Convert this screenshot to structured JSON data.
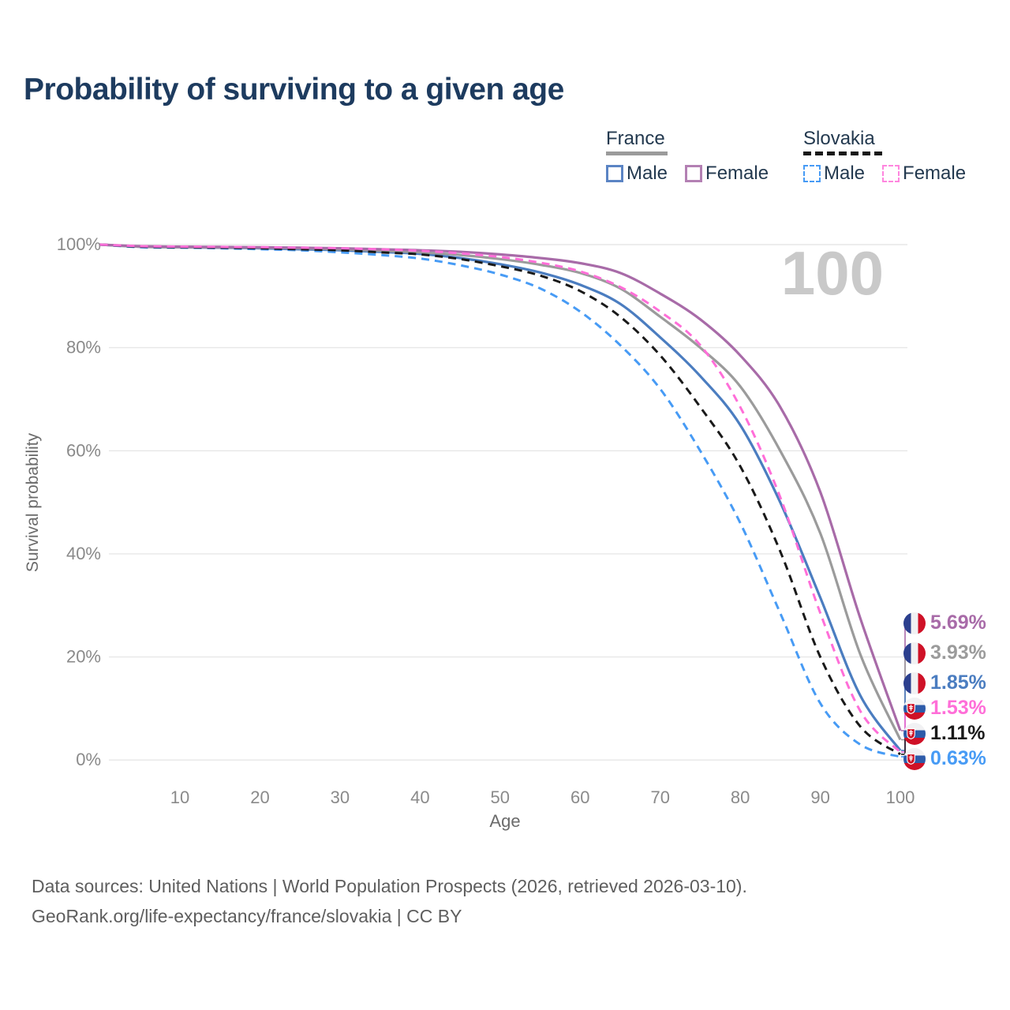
{
  "title": "Probability of surviving to a given age",
  "watermark": "100",
  "legend": {
    "groups": [
      {
        "label": "France",
        "line_style": "solid",
        "underline_color": "#9b9b9b",
        "items": [
          {
            "label": "Male",
            "color": "#5b84c4"
          },
          {
            "label": "Female",
            "color": "#b380b3"
          }
        ]
      },
      {
        "label": "Slovakia",
        "line_style": "dashed",
        "underline_color": "#191919",
        "items": [
          {
            "label": "Male",
            "color": "#479bf5"
          },
          {
            "label": "Female",
            "color": "#ff86df"
          }
        ]
      }
    ]
  },
  "axes": {
    "x": {
      "title": "Age",
      "min": 0,
      "max": 100,
      "ticks": [
        {
          "v": 10,
          "label": "10"
        },
        {
          "v": 20,
          "label": "20"
        },
        {
          "v": 30,
          "label": "30"
        },
        {
          "v": 40,
          "label": "40"
        },
        {
          "v": 50,
          "label": "50"
        },
        {
          "v": 60,
          "label": "60"
        },
        {
          "v": 70,
          "label": "70"
        },
        {
          "v": 80,
          "label": "80"
        },
        {
          "v": 90,
          "label": "90"
        },
        {
          "v": 100,
          "label": "100"
        }
      ]
    },
    "y": {
      "title": "Survival probability",
      "min": 0,
      "max": 100,
      "ticks": [
        {
          "v": 0,
          "label": "0%"
        },
        {
          "v": 20,
          "label": "20%"
        },
        {
          "v": 40,
          "label": "40%"
        },
        {
          "v": 60,
          "label": "60%"
        },
        {
          "v": 80,
          "label": "80%"
        },
        {
          "v": 100,
          "label": "100%"
        }
      ]
    }
  },
  "end_labels": [
    {
      "label": "5.69%",
      "color": "#a86ba8",
      "flag": "france-flag-icon",
      "series": "France Female"
    },
    {
      "label": "3.93%",
      "color": "#9b9b9b",
      "flag": "france-flag-icon",
      "series": "France Both sexes"
    },
    {
      "label": "1.85%",
      "color": "#4b7dc0",
      "flag": "france-flag-icon",
      "series": "France Male"
    },
    {
      "label": "1.53%",
      "color": "#ff6ed8",
      "flag": "slovakia-flag-icon",
      "series": "Slovakia Female"
    },
    {
      "label": "1.11%",
      "color": "#1a1a1a",
      "flag": "slovakia-flag-icon",
      "series": "Slovakia Both sexes"
    },
    {
      "label": "0.63%",
      "color": "#479bf5",
      "flag": "slovakia-flag-icon",
      "series": "Slovakia Male"
    }
  ],
  "footer": {
    "line1": "Data sources: United Nations | World Population Prospects (2026, retrieved 2026-03-10).",
    "line2": "GeoRank.org/life-expectancy/france/slovakia | CC BY"
  },
  "chart_data": {
    "type": "line",
    "title": "Probability of surviving to a given age",
    "xlabel": "Age",
    "ylabel": "Survival probability",
    "xlim": [
      0,
      100
    ],
    "ylim": [
      0,
      100
    ],
    "grid": "horizontal",
    "legend_position": "top-right",
    "x": [
      0,
      5,
      10,
      15,
      20,
      25,
      30,
      35,
      40,
      45,
      50,
      55,
      60,
      65,
      70,
      75,
      80,
      85,
      90,
      95,
      100
    ],
    "series": [
      {
        "name": "France Male",
        "country": "France",
        "sex": "Male",
        "color": "#4b7dc0",
        "dash": "solid",
        "end_label": "1.85%",
        "values": [
          100,
          99.6,
          99.5,
          99.4,
          99.3,
          99.1,
          98.9,
          98.6,
          98.2,
          97.4,
          96.2,
          94.6,
          92.2,
          88.5,
          82.0,
          74.5,
          65.0,
          50.0,
          31.5,
          12.5,
          1.85
        ]
      },
      {
        "name": "France Both sexes",
        "country": "France",
        "sex": "Both",
        "color": "#9b9b9b",
        "dash": "solid",
        "end_label": "3.93%",
        "values": [
          100,
          99.6,
          99.5,
          99.45,
          99.4,
          99.3,
          99.1,
          98.8,
          98.5,
          98.0,
          97.2,
          96.1,
          94.5,
          91.5,
          86.0,
          80.0,
          72.5,
          60.0,
          44.0,
          20.5,
          3.93
        ]
      },
      {
        "name": "France Female",
        "country": "France",
        "sex": "Female",
        "color": "#a86ba8",
        "dash": "solid",
        "end_label": "5.69%",
        "values": [
          100,
          99.7,
          99.6,
          99.55,
          99.5,
          99.4,
          99.3,
          99.1,
          98.9,
          98.6,
          98.1,
          97.4,
          96.4,
          94.5,
          90.5,
          85.5,
          78.5,
          68.5,
          52.0,
          27.5,
          5.69
        ]
      },
      {
        "name": "Slovakia Male",
        "country": "Slovakia",
        "sex": "Male",
        "color": "#479bf5",
        "dash": "dashed",
        "end_label": "0.63%",
        "values": [
          100,
          99.5,
          99.4,
          99.3,
          99.1,
          98.9,
          98.5,
          98.0,
          97.3,
          96.0,
          94.2,
          91.5,
          87.0,
          80.5,
          72.0,
          60.0,
          46.0,
          28.5,
          11.0,
          3.0,
          0.63
        ]
      },
      {
        "name": "Slovakia Both sexes",
        "country": "Slovakia",
        "sex": "Both",
        "color": "#191919",
        "dash": "dashed",
        "end_label": "1.11%",
        "values": [
          100,
          99.6,
          99.5,
          99.4,
          99.3,
          99.1,
          98.9,
          98.5,
          98.1,
          97.2,
          95.8,
          94.0,
          91.0,
          86.0,
          78.5,
          68.5,
          57.0,
          40.5,
          20.0,
          6.5,
          1.11
        ]
      },
      {
        "name": "Slovakia Female",
        "country": "Slovakia",
        "sex": "Female",
        "color": "#ff6ed8",
        "dash": "dashed",
        "end_label": "1.53%",
        "values": [
          100,
          99.7,
          99.6,
          99.55,
          99.5,
          99.4,
          99.3,
          99.1,
          98.8,
          98.3,
          97.6,
          96.5,
          94.8,
          91.8,
          87.0,
          80.5,
          68.5,
          51.0,
          28.5,
          9.5,
          1.53
        ]
      }
    ]
  }
}
